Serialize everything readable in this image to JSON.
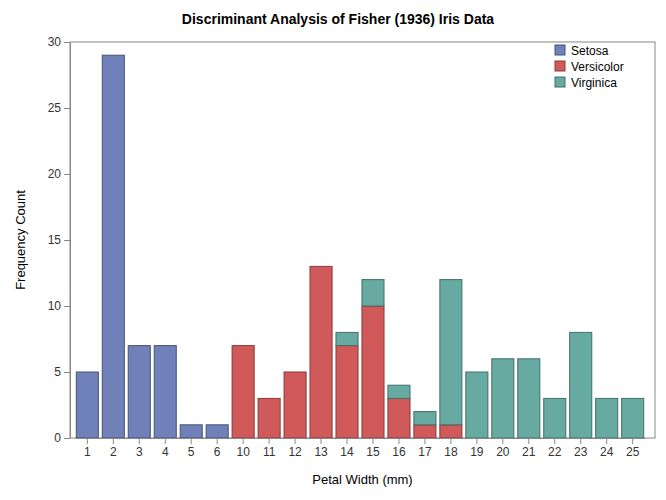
{
  "chart_data": {
    "type": "bar",
    "title": "Discriminant Analysis of Fisher (1936) Iris Data",
    "x_label": "Petal Width (mm)",
    "y_label": "Frequency Count",
    "categories": [
      1,
      2,
      3,
      4,
      5,
      6,
      10,
      11,
      12,
      13,
      14,
      15,
      16,
      17,
      18,
      19,
      20,
      21,
      22,
      23,
      24,
      25
    ],
    "series": [
      {
        "name": "Setosa",
        "color": "#7080b8",
        "values": [
          5,
          29,
          7,
          7,
          1,
          1,
          null,
          null,
          null,
          null,
          null,
          null,
          null,
          null,
          null,
          null,
          null,
          null,
          null,
          null,
          null,
          null
        ]
      },
      {
        "name": "Versicolor",
        "color": "#d05a5a",
        "values": [
          null,
          null,
          null,
          null,
          null,
          null,
          7,
          3,
          5,
          13,
          7,
          10,
          3,
          1,
          1,
          null,
          null,
          null,
          null,
          null,
          null,
          null
        ]
      },
      {
        "name": "Virginica",
        "color": "#66aaa2",
        "values": [
          null,
          null,
          null,
          null,
          null,
          null,
          null,
          null,
          null,
          null,
          1,
          2,
          1,
          1,
          11,
          5,
          6,
          6,
          3,
          8,
          3,
          3
        ]
      }
    ],
    "stacked": true,
    "ylim": [
      0,
      30
    ],
    "yticks": [
      0,
      5,
      10,
      15,
      20,
      25,
      30
    ],
    "legend": "top-right",
    "grid": false
  }
}
